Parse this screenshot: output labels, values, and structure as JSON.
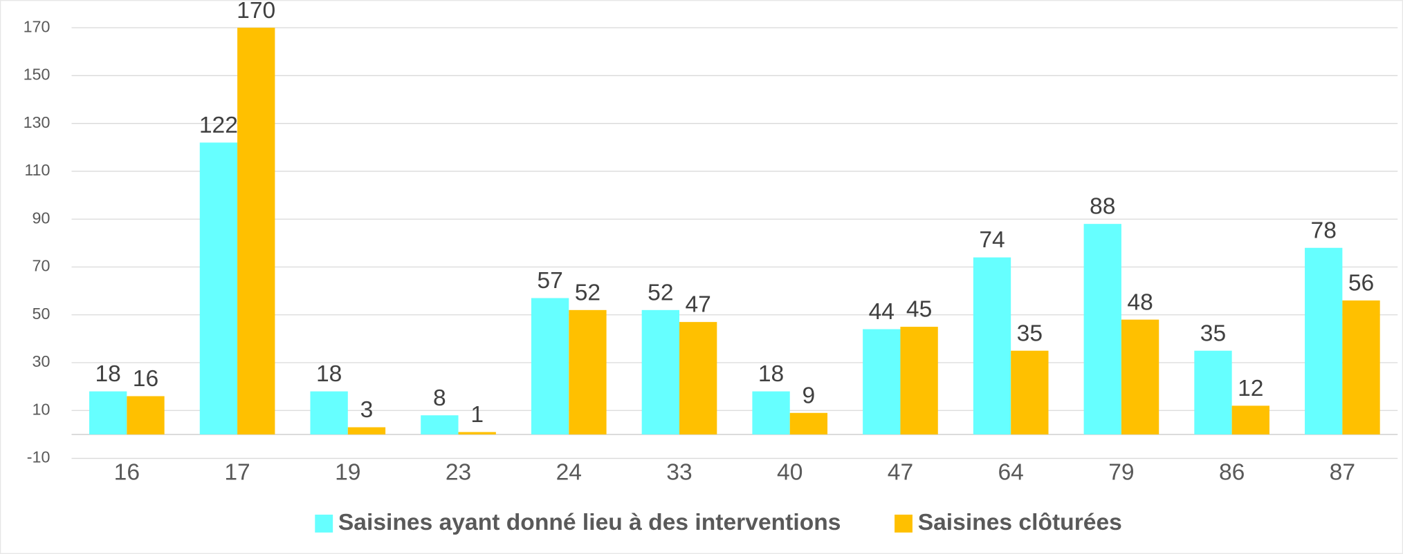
{
  "chart_data": {
    "type": "bar",
    "categories": [
      "16",
      "17",
      "19",
      "23",
      "24",
      "33",
      "40",
      "47",
      "64",
      "79",
      "86",
      "87"
    ],
    "series": [
      {
        "name": "Saisines ayant donné lieu à des interventions",
        "color": "#66ffff",
        "values": [
          18,
          122,
          18,
          8,
          57,
          52,
          18,
          44,
          74,
          88,
          35,
          78
        ]
      },
      {
        "name": "Saisines clôturées",
        "color": "#ffc000",
        "values": [
          16,
          170,
          3,
          1,
          52,
          47,
          9,
          45,
          35,
          48,
          12,
          56
        ]
      }
    ],
    "ylim": [
      -10,
      170
    ],
    "yticks": [
      -10,
      10,
      30,
      50,
      70,
      90,
      110,
      130,
      150,
      170
    ],
    "grid": true,
    "legend": "bottom"
  }
}
